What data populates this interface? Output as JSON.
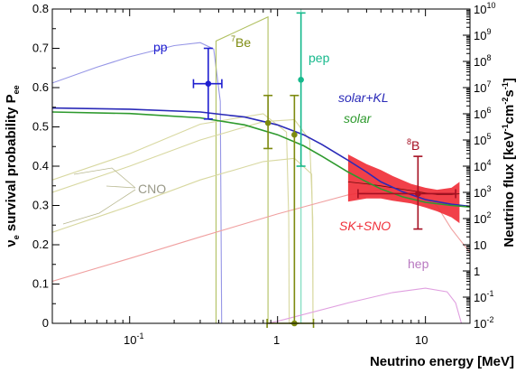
{
  "chart_data": {
    "type": "line",
    "xlabel": "Neutrino energy [MeV]",
    "ylabel": "νe survival probability Pee",
    "ylabel_base": "ν",
    "ylabel_sub": "e",
    "ylabel_mid": " survival probability P",
    "ylabel_sub2": "ee",
    "y2label": "Neutrino flux [keV-1cm-2s-1]",
    "y2label_pre": "Neutrino flux [keV",
    "y2label_mid1": "cm",
    "y2label_mid2": "s",
    "y2label_close": "]",
    "y2label_exp": "-1",
    "y2label_exp2": "-2",
    "xscale": "log",
    "xlim": [
      0.03,
      20
    ],
    "ylim": [
      0,
      0.8
    ],
    "y2scale": "log",
    "y2lim": [
      0.01,
      10000000000.0
    ],
    "x_ticks": [
      "10",
      "-1",
      "1",
      "10"
    ],
    "y_ticks": [
      "0",
      "0.1",
      "0.2",
      "0.3",
      "0.4",
      "0.5",
      "0.6",
      "0.7",
      "0.8"
    ],
    "y2_ticks": [
      {
        "base": "10",
        "exp": "-2"
      },
      {
        "base": "10",
        "exp": "-1"
      },
      {
        "base": "1",
        "exp": ""
      },
      {
        "base": "10",
        "exp": ""
      },
      {
        "base": "10",
        "exp": "2"
      },
      {
        "base": "10",
        "exp": "3"
      },
      {
        "base": "10",
        "exp": "4"
      },
      {
        "base": "10",
        "exp": "5"
      },
      {
        "base": "10",
        "exp": "6"
      },
      {
        "base": "10",
        "exp": "7"
      },
      {
        "base": "10",
        "exp": "8"
      },
      {
        "base": "10",
        "exp": "9"
      },
      {
        "base": "10",
        "exp": "10"
      }
    ],
    "annotations": {
      "pp": "pp",
      "be7_sup": "7",
      "be7": "Be",
      "pep": "pep",
      "b8_sup": "8",
      "b8": "B",
      "cno": "CNO",
      "hep": "hep",
      "solar_kl": "solar+KL",
      "solar": "solar",
      "sk_sno": "SK+SNO"
    },
    "colors": {
      "pp": "#1f1fd0",
      "be7": "#7d8a0f",
      "pep": "#16b98c",
      "b8": "#a50f22",
      "solar_kl": "#2a2ab8",
      "solar": "#2e9a2e",
      "sk_sno": "#f0303a",
      "cno": "#a3a383",
      "hep": "#c080c8"
    },
    "series": [
      {
        "name": "solar+KL",
        "x": [
          0.03,
          0.1,
          0.3,
          0.6,
          1,
          1.5,
          2,
          3,
          4,
          5,
          7,
          10,
          15,
          20
        ],
        "y": [
          0.548,
          0.545,
          0.538,
          0.525,
          0.505,
          0.48,
          0.455,
          0.415,
          0.385,
          0.36,
          0.335,
          0.315,
          0.303,
          0.298
        ]
      },
      {
        "name": "solar",
        "x": [
          0.03,
          0.1,
          0.3,
          0.6,
          1,
          1.5,
          2,
          3,
          4,
          5,
          7,
          10,
          15,
          20
        ],
        "y": [
          0.538,
          0.534,
          0.523,
          0.505,
          0.48,
          0.452,
          0.425,
          0.385,
          0.36,
          0.342,
          0.322,
          0.308,
          0.3,
          0.296
        ]
      }
    ],
    "sk_sno_band": {
      "x": [
        3.0,
        4,
        5,
        6,
        8,
        10,
        12,
        15,
        17
      ],
      "lower": [
        0.31,
        0.318,
        0.318,
        0.312,
        0.305,
        0.295,
        0.285,
        0.27,
        0.255
      ],
      "upper": [
        0.43,
        0.405,
        0.39,
        0.375,
        0.355,
        0.345,
        0.34,
        0.345,
        0.36
      ],
      "central": [
        0.36,
        0.355,
        0.35,
        0.345,
        0.338,
        0.332,
        0.328,
        0.328,
        0.33
      ]
    },
    "points": [
      {
        "name": "pp",
        "x": 0.34,
        "xerr": [
          0.27,
          0.42
        ],
        "y": 0.61,
        "yerr": [
          0.52,
          0.7
        ]
      },
      {
        "name": "7Be",
        "x": 0.862,
        "xerr": [
          0.862,
          0.862
        ],
        "y": 0.51,
        "yerr": [
          0.445,
          0.58
        ]
      },
      {
        "name": "pep",
        "x": 1.44,
        "xerr": [
          1.44,
          1.44
        ],
        "y": 0.62,
        "yerr": [
          0.4,
          0.79
        ]
      },
      {
        "name": "8B",
        "x": 8.9,
        "xerr": [
          3.5,
          16
        ],
        "y": 0.33,
        "yerr": [
          0.24,
          0.425
        ]
      },
      {
        "name": "",
        "x": 1.3,
        "xerr": [
          1.3,
          1.3
        ],
        "y": 0.48,
        "yerr": [
          0.0,
          0.58
        ]
      },
      {
        "name": "",
        "x": 1.3,
        "xerr": [
          0.85,
          1.75
        ],
        "y": 0.0,
        "yerr": [
          0.0,
          0.0
        ]
      }
    ],
    "flux_curves": [
      {
        "name": "pp",
        "color": "#9696e6",
        "x": [
          0.03,
          0.06,
          0.1,
          0.2,
          0.3,
          0.37,
          0.41,
          0.42
        ],
        "y2": [
          15000000.0,
          60000000.0,
          150000000.0,
          400000000.0,
          520000000.0,
          300000000.0,
          3000000.0,
          0.001
        ]
      },
      {
        "name": "7Be-line",
        "color": "#b0c060",
        "x": [
          0.384,
          0.384,
          0.862,
          0.862
        ],
        "y2": [
          0.001,
          600000000.0,
          5000000000.0,
          0.001
        ]
      },
      {
        "name": "pep-line",
        "color": "#70d8b8",
        "x": [
          1.44,
          1.44
        ],
        "y2": [
          0.001,
          10000000000.0
        ]
      },
      {
        "name": "CNO-13N",
        "color": "#d8d8a0",
        "x": [
          0.03,
          0.1,
          0.3,
          0.8,
          1.15,
          1.19,
          1.2
        ],
        "y2": [
          3000.0,
          30000.0,
          400000.0,
          1000000.0,
          200000.0,
          100.0,
          0.001
        ]
      },
      {
        "name": "CNO-15O",
        "color": "#d8d8a0",
        "x": [
          0.03,
          0.1,
          0.3,
          0.8,
          1.3,
          1.65,
          1.73,
          1.74
        ],
        "y2": [
          1000.0,
          10000.0,
          100000.0,
          500000.0,
          600000.0,
          100000.0,
          100.0,
          0.001
        ]
      },
      {
        "name": "CNO-17F",
        "color": "#d8d8a0",
        "x": [
          0.03,
          0.1,
          0.3,
          0.8,
          1.3,
          1.7,
          1.73,
          1.74
        ],
        "y2": [
          30,
          300.0,
          3000.0,
          15000.0,
          20000.0,
          5000.0,
          10.0,
          0.001
        ]
      },
      {
        "name": "8B",
        "color": "#f0a0a0",
        "x": [
          0.03,
          0.1,
          0.3,
          1,
          3,
          6,
          9,
          12,
          15,
          20
        ],
        "y2": [
          0.4,
          3,
          20,
          150,
          800,
          1500,
          900,
          300,
          40,
          5
        ]
      },
      {
        "name": "hep",
        "color": "#e0a0e0",
        "x": [
          0.3,
          1,
          3,
          6,
          10,
          14,
          16,
          17.5,
          18.8
        ],
        "y2": [
          0.003,
          0.012,
          0.06,
          0.15,
          0.22,
          0.16,
          0.06,
          0.01,
          0.001
        ]
      }
    ]
  }
}
